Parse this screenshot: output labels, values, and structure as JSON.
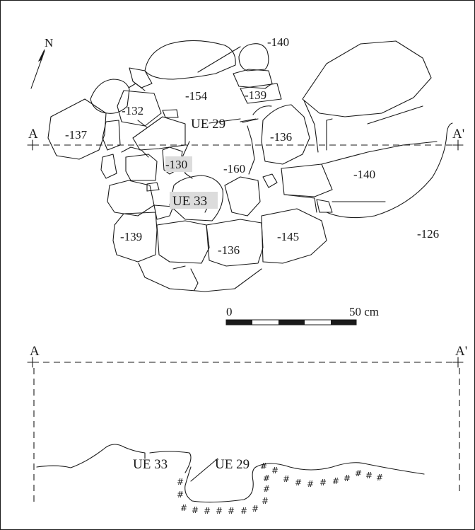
{
  "north": {
    "label": "N"
  },
  "plan": {
    "section_start": "A",
    "section_end": "A'",
    "levels": {
      "l140_top": "-140",
      "l154": "-154",
      "l139_top": "-139",
      "l132": "-132",
      "l137": "-137",
      "l136_right": "-136",
      "l130": "-130",
      "l160": "-160",
      "l140_right": "-140",
      "l139_bottom": "-139",
      "l136_bottom": "-136",
      "l145": "-145",
      "l126": "-126"
    },
    "units": {
      "ue29": "UE 29",
      "ue33": "UE 33"
    }
  },
  "scale": {
    "start_label": "0",
    "end_label": "50 cm"
  },
  "section": {
    "start_label": "A",
    "end_label": "A'",
    "ue33": "UE 33",
    "ue29": "UE 29"
  }
}
